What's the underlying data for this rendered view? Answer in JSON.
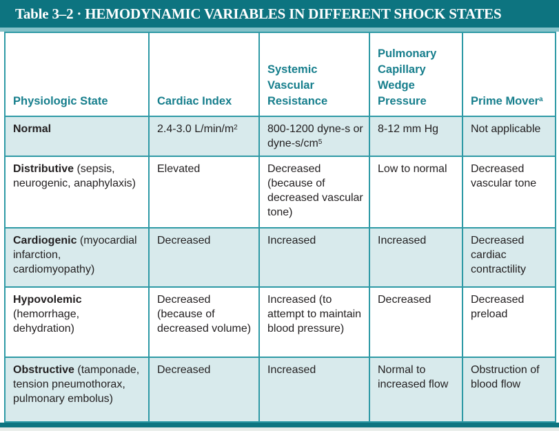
{
  "title": {
    "text": "Table 3–2 · HEMODYNAMIC VARIABLES IN DIFFERENT SHOCK STATES"
  },
  "colors": {
    "title_bar_teal": "#0d7480",
    "accent_strip_teal": "#85c2c9",
    "table_border_teal": "#2d99a5",
    "shaded_row_blue": "#d8eaec",
    "header_text_teal": "#167e8c",
    "body_text": "#232021",
    "title_text": "#ffffff"
  },
  "table": {
    "columns": [
      {
        "segs": [
          {
            "t": "Physiologic State"
          }
        ]
      },
      {
        "segs": [
          {
            "t": "Cardiac Index"
          }
        ]
      },
      {
        "segs": [
          {
            "t": "Systemic Vascular Resistance"
          }
        ]
      },
      {
        "segs": [
          {
            "t": "Pulmonary Capillary Wedge Pressure"
          }
        ]
      },
      {
        "segs": [
          {
            "t": "Prime Mover"
          },
          {
            "t": "a",
            "sup": true
          }
        ]
      }
    ],
    "rows": [
      {
        "shaded": true,
        "state": [
          {
            "t": "Normal",
            "b": true
          }
        ],
        "cells": [
          [
            {
              "t": "2.4-3.0 L/min/m"
            },
            {
              "t": "2",
              "sup": true
            }
          ],
          [
            {
              "t": "800-1200 dyne-s or dyne-s/cm"
            },
            {
              "t": "5",
              "sup": true
            }
          ],
          [
            {
              "t": "8-12 mm Hg"
            }
          ],
          [
            {
              "t": "Not applicable"
            }
          ]
        ]
      },
      {
        "shaded": false,
        "state": [
          {
            "t": "Distributive",
            "b": true
          },
          {
            "t": " (sepsis, neurogenic, anaphylaxis)"
          }
        ],
        "cells": [
          [
            {
              "t": "Elevated"
            }
          ],
          [
            {
              "t": "Decreased (because of decreased vascular tone)"
            }
          ],
          [
            {
              "t": "Low to normal"
            }
          ],
          [
            {
              "t": "Decreased vascular tone"
            }
          ]
        ]
      },
      {
        "shaded": true,
        "state": [
          {
            "t": "Cardiogenic",
            "b": true
          },
          {
            "t": " (myocardial infarction, cardiomyopathy)"
          }
        ],
        "cells": [
          [
            {
              "t": "Decreased"
            }
          ],
          [
            {
              "t": "Increased"
            }
          ],
          [
            {
              "t": "Increased"
            }
          ],
          [
            {
              "t": "Decreased cardiac contractility"
            }
          ]
        ]
      },
      {
        "shaded": false,
        "state": [
          {
            "t": "Hypovolemic",
            "b": true
          },
          {
            "t": " (hemorrhage, dehydration)"
          }
        ],
        "cells": [
          [
            {
              "t": "Decreased (because of decreased volume)"
            }
          ],
          [
            {
              "t": "Increased (to attempt to maintain blood pressure)"
            }
          ],
          [
            {
              "t": "Decreased"
            }
          ],
          [
            {
              "t": "Decreased preload"
            }
          ]
        ]
      },
      {
        "shaded": true,
        "state": [
          {
            "t": "Obstructive",
            "b": true
          },
          {
            "t": " (tamponade, tension pneumothorax, pulmonary embolus)"
          }
        ],
        "cells": [
          [
            {
              "t": "Decreased"
            }
          ],
          [
            {
              "t": "Increased"
            }
          ],
          [
            {
              "t": "Normal to increased flow"
            }
          ],
          [
            {
              "t": "Obstruction of blood flow"
            }
          ]
        ]
      }
    ]
  }
}
